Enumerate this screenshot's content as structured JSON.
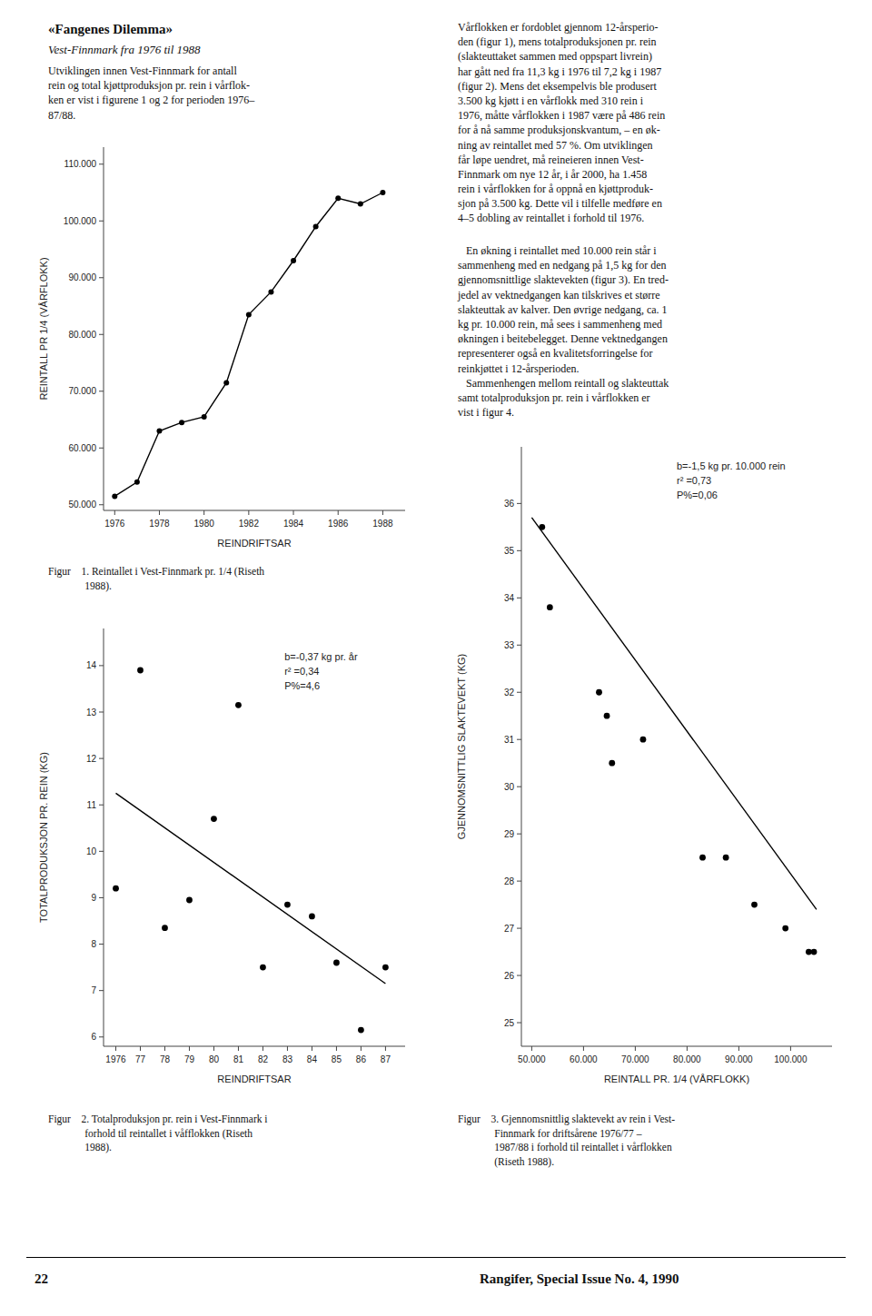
{
  "chart_data": [
    {
      "type": "line",
      "xlabel": "REINDRIFTSAR",
      "ylabel": "REINTALL PR 1/4 (VÅRFLOKK)",
      "x": [
        1976,
        1977,
        1978,
        1979,
        1980,
        1981,
        1982,
        1983,
        1984,
        1985,
        1986,
        1987,
        1988
      ],
      "values": [
        51500,
        54000,
        63000,
        64500,
        65500,
        71500,
        83500,
        87500,
        93000,
        99000,
        104000,
        103000,
        105000
      ],
      "color": "#000000",
      "marker": "circle",
      "xlim": [
        1975.5,
        1989.0
      ],
      "ylim": [
        49000,
        113000
      ],
      "xticks": [
        1976,
        1978,
        1980,
        1982,
        1984,
        1986,
        1988
      ],
      "yticks": [
        {
          "value": 50000,
          "label": "50.000"
        },
        {
          "value": 60000,
          "label": "60.000"
        },
        {
          "value": 70000,
          "label": "70.000"
        },
        {
          "value": 80000,
          "label": "80.000"
        },
        {
          "value": 90000,
          "label": "90.000"
        },
        {
          "value": 100000,
          "label": "100.000"
        },
        {
          "value": 110000,
          "label": "110.000"
        }
      ],
      "caption": "Figur    1. Reintallet i Vest-Finnmark pr. 1/4 (Riseth\n              1988)."
    },
    {
      "type": "scatter",
      "xlabel": "REINDRIFTSAR",
      "ylabel": "TOTALPRODUKSJON PR. REIN (KG)",
      "series": [
        {
          "type": "scatter",
          "marker": "circle",
          "color": "#000000",
          "x": [
            1976,
            1977,
            1978,
            1979,
            1980,
            1981,
            1982,
            1983,
            1984,
            1985,
            1986,
            1987
          ],
          "values": [
            9.2,
            13.9,
            8.35,
            8.95,
            10.7,
            13.15,
            7.5,
            8.85,
            8.6,
            7.6,
            6.15,
            7.5
          ]
        },
        {
          "type": "line",
          "color": "#000000",
          "x": [
            1976,
            1987
          ],
          "values": [
            11.25,
            7.15
          ]
        }
      ],
      "xlim": [
        1975.5,
        1987.8
      ],
      "ylim": [
        5.8,
        14.8
      ],
      "xticks": [
        1976,
        {
          "value": 1977,
          "label": "77"
        },
        {
          "value": 1978,
          "label": "78"
        },
        {
          "value": 1979,
          "label": "79"
        },
        {
          "value": 1980,
          "label": "80"
        },
        {
          "value": 1981,
          "label": "81"
        },
        {
          "value": 1982,
          "label": "82"
        },
        {
          "value": 1983,
          "label": "83"
        },
        {
          "value": 1984,
          "label": "84"
        },
        {
          "value": 1985,
          "label": "85"
        },
        {
          "value": 1986,
          "label": "86"
        },
        {
          "value": 1987,
          "label": "87"
        }
      ],
      "yticks": [
        6,
        7,
        8,
        9,
        10,
        11,
        12,
        13,
        14
      ],
      "annotation": "b=-0,37 kg pr. år\nr² =0,34\nP%=4,6",
      "caption": "Figur    2. Totalproduksjon pr. rein i Vest-Finnmark i\n              forhold til reintallet i våfflokken (Riseth\n              1988)."
    },
    {
      "type": "scatter",
      "xlabel": "REINTALL PR. 1/4 (VÅRFLOKK)",
      "ylabel": "GJENNOMSNITTLIG SLAKTEVEKT (KG)",
      "series": [
        {
          "type": "scatter",
          "marker": "circle",
          "color": "#000000",
          "x": [
            52000,
            53500,
            63000,
            64500,
            65500,
            71500,
            83000,
            87500,
            93000,
            99000,
            103500,
            104500
          ],
          "values": [
            35.5,
            33.8,
            32.0,
            31.5,
            30.5,
            31.0,
            28.5,
            28.5,
            27.5,
            27.0,
            26.5,
            26.5
          ]
        },
        {
          "type": "line",
          "color": "#000000",
          "x": [
            50000,
            105000
          ],
          "values": [
            35.7,
            27.4
          ]
        }
      ],
      "xlim": [
        48000,
        108000
      ],
      "ylim": [
        24.5,
        37.2
      ],
      "xticks": [
        {
          "value": 50000,
          "label": "50.000"
        },
        {
          "value": 60000,
          "label": "60.000"
        },
        {
          "value": 70000,
          "label": "70.000"
        },
        {
          "value": 80000,
          "label": "80.000"
        },
        {
          "value": 90000,
          "label": "90.000"
        },
        {
          "value": 100000,
          "label": "100.000"
        }
      ],
      "yticks": [
        25,
        26,
        27,
        28,
        29,
        30,
        31,
        32,
        33,
        34,
        35,
        36
      ],
      "annotation": "b=-1,5 kg pr. 10.000 rein\nr² =0,73\nP%=0,06",
      "caption": "Figur    3. Gjennomsnittlig slaktevekt av rein i Vest-\n              Finnmark for driftsårene 1976/77 –\n              1987/88 i forhold til reintallet i vårflokken\n              (Riseth 1988)."
    }
  ],
  "text_left_heading": "«Fangenes Dilemma»",
  "text_left_subtitle": "Vest-Finnmark fra 1976 til 1988",
  "text_left_body": "Utviklingen innen Vest-Finnmark for antall\nrein og total kjøttproduksjon pr. rein i vårflok-\nken er vist i figurene 1 og 2 for perioden 1976–\n87/88.",
  "text_right_top": "Vårflokken er fordoblet gjennom 12-årsperio-\nden (figur 1), mens totalproduksjonen pr. rein\n(slakteuttaket sammen med oppspart livrein)\nhar gått ned fra 11,3 kg i 1976 til 7,2 kg i 1987\n(figur 2). Mens det eksempelvis ble produsert\n3.500 kg kjøtt i en vårflokk med 310 rein i\n1976, måtte vårflokken i 1987 være på 486 rein\nfor å nå samme produksjonskvantum, – en øk-\nning av reintallet med 57 %. Om utviklingen\nfår løpe uendret, må reineieren innen Vest-\nFinnmark om nye 12 år, i år 2000, ha 1.458\nrein i vårflokken for å oppnå en kjøttproduk-\nsjon på 3.500 kg. Dette vil i tilfelle medføre en\n4–5 dobling av reintallet i forhold til 1976.",
  "text_right_mid": "   En økning i reintallet med 10.000 rein står i\nsammenheng med en nedgang på 1,5 kg for den\ngjennomsnittlige slaktevekten (figur 3). En tred-\njedel av vektnedgangen kan tilskrives et større\nslakteuttak av kalver. Den øvrige nedgang, ca. 1\nkg pr. 10.000 rein, må sees i sammenheng med\nøkningen i beitebelegget. Denne vektnedgangen\nrepresenterer også en kvalitetsforringelse for\nreinkjøttet i 12-årsperioden.\n   Sammenhengen mellom reintall og slakteuttak\nsamt totalproduksjon pr. rein i vårflokken er\nvist i figur 4.",
  "page_number": "22",
  "journal": "Rangifer, Special Issue No. 4, 1990"
}
